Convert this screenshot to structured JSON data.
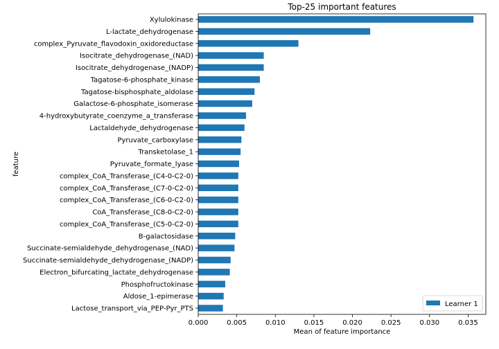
{
  "chart_data": {
    "type": "bar",
    "orientation": "horizontal",
    "title": "Top-25 important features",
    "xlabel": "Mean of feature importance",
    "ylabel": "feature",
    "xlim": [
      0,
      0.0373
    ],
    "xticks": [
      "0.000",
      "0.005",
      "0.010",
      "0.015",
      "0.020",
      "0.025",
      "0.030",
      "0.035"
    ],
    "xtick_values": [
      0,
      0.005,
      0.01,
      0.015,
      0.02,
      0.025,
      0.03,
      0.035
    ],
    "grid": false,
    "legend_position": "lower-right",
    "bar_color": "#1f77b4",
    "categories": [
      "Xylulokinase",
      "L-lactate_dehydrogenase",
      "complex_Pyruvate_flavodoxin_oxidoreductase",
      "Isocitrate_dehydrogenase_(NAD)",
      "Isocitrate_dehydrogenase_(NADP)",
      "Tagatose-6-phosphate_kinase",
      "Tagatose-bisphosphate_aldolase",
      "Galactose-6-phosphate_isomerase",
      "4-hydroxybutyrate_coenzyme_a_transferase",
      "Lactaldehyde_dehydrogenase",
      "Pyruvate_carboxylase",
      "Transketolase_1",
      "Pyruvate_formate_lyase",
      "complex_CoA_Transferase_(C4-0-C2-0)",
      "complex_CoA_Transferase_(C7-0-C2-0)",
      "complex_CoA_Transferase_(C6-0-C2-0)",
      "CoA_Transferase_(C8-0-C2-0)",
      "complex_CoA_Transferase_(C5-0-C2-0)",
      "B-galactosidase",
      "Succinate-semialdehyde_dehydrogenase_(NAD)",
      "Succinate-semialdehyde_dehydrogenase_(NADP)",
      "Electron_bifurcating_lactate_dehydrogenase",
      "Phosphofructokinase",
      "Aldose_1-epimerase",
      "Lactose_transport_via_PEP-Pyr_PTS"
    ],
    "series": [
      {
        "name": "Learner 1",
        "values": [
          0.0357,
          0.0223,
          0.013,
          0.0085,
          0.0085,
          0.008,
          0.0073,
          0.007,
          0.0062,
          0.006,
          0.0056,
          0.0055,
          0.0053,
          0.0052,
          0.0052,
          0.0052,
          0.0052,
          0.0052,
          0.0048,
          0.0047,
          0.0042,
          0.0041,
          0.0035,
          0.0033,
          0.0032
        ]
      }
    ]
  }
}
